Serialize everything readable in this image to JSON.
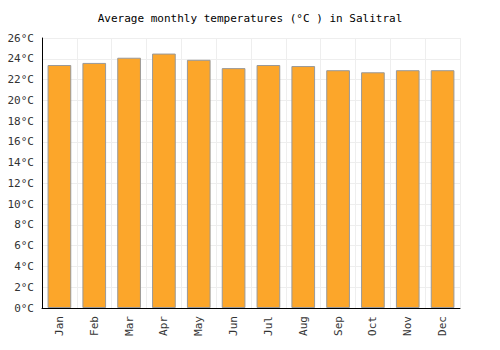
{
  "chart_data": {
    "type": "bar",
    "title": "Average monthly temperatures (°C ) in Salitral",
    "categories": [
      "Jan",
      "Feb",
      "Mar",
      "Apr",
      "May",
      "Jun",
      "Jul",
      "Aug",
      "Sep",
      "Oct",
      "Nov",
      "Dec"
    ],
    "values": [
      23.4,
      23.6,
      24.1,
      24.5,
      23.9,
      23.1,
      23.4,
      23.3,
      22.9,
      22.7,
      22.9,
      22.9
    ],
    "color": "#fca62a",
    "ylim": [
      0,
      26
    ],
    "yticks": [
      {
        "value": 0,
        "label": "0°C"
      },
      {
        "value": 2,
        "label": "2°C"
      },
      {
        "value": 4,
        "label": "4°C"
      },
      {
        "value": 6,
        "label": "6°C"
      },
      {
        "value": 8,
        "label": "8°C"
      },
      {
        "value": 10,
        "label": "10°C"
      },
      {
        "value": 12,
        "label": "12°C"
      },
      {
        "value": 14,
        "label": "14°C"
      },
      {
        "value": 16,
        "label": "16°C"
      },
      {
        "value": 18,
        "label": "18°C"
      },
      {
        "value": 20,
        "label": "20°C"
      },
      {
        "value": 22,
        "label": "22°C"
      },
      {
        "value": 24,
        "label": "24°C"
      },
      {
        "value": 26,
        "label": "26°C"
      }
    ],
    "grid": true
  }
}
